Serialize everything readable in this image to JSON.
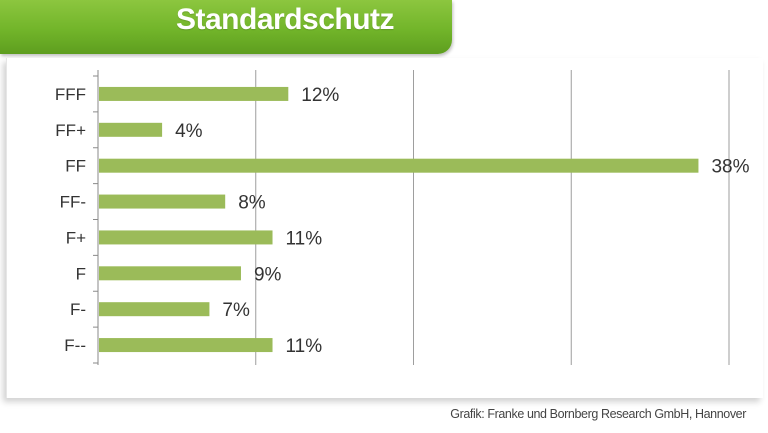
{
  "colors": {
    "banner": "#72b52a",
    "bar": "#9bbb59",
    "grid": "#9e9e9e"
  },
  "chart_data": {
    "type": "bar",
    "orientation": "horizontal",
    "title": "Standardschutz",
    "categories": [
      "FFF",
      "FF+",
      "FF",
      "FF-",
      "F+",
      "F",
      "F-",
      "F--"
    ],
    "values": [
      12,
      4,
      38,
      8,
      11,
      9,
      7,
      11
    ],
    "value_labels": [
      "12%",
      "4%",
      "38%",
      "8%",
      "11%",
      "9%",
      "7%",
      "11%"
    ],
    "xlim": [
      0,
      40
    ],
    "grid": true,
    "source": "Grafik: Franke und Bornberg Research GmbH, Hannover"
  }
}
